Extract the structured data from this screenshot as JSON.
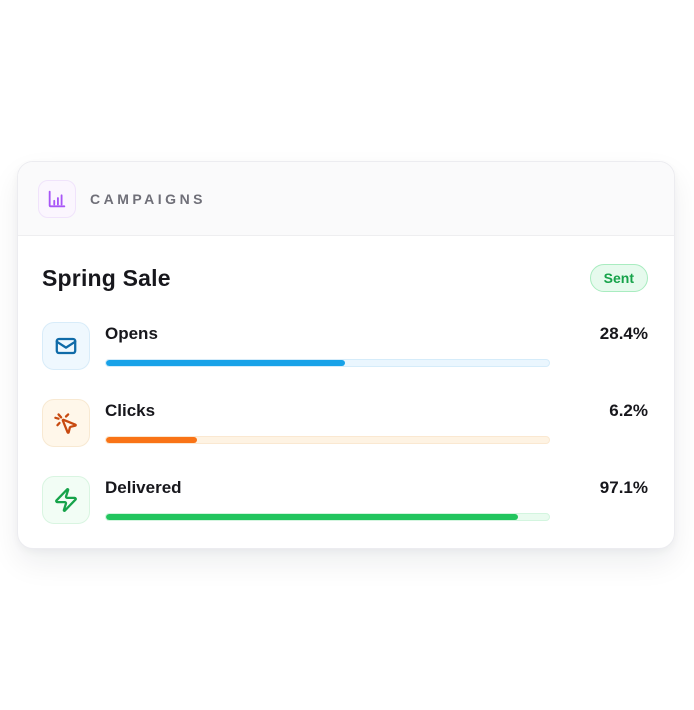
{
  "header": {
    "label": "CAMPAIGNS",
    "icon": "bar-chart-icon",
    "icon_color": "#a855f7",
    "icon_bg": "#fbf6fe",
    "icon_border": "#f0e3fb"
  },
  "campaign": {
    "title": "Spring Sale",
    "status": "Sent",
    "status_colors": {
      "bg": "#e6faed",
      "border": "#a9ecc0",
      "text": "#16a34a"
    },
    "metrics": [
      {
        "id": "opens",
        "label": "Opens",
        "value": "28.4%",
        "bar_fill_percent": 54,
        "icon": "mail-icon",
        "bar_color": "#18a2e8",
        "track_color": "#eaf6fe",
        "track_border": "#d5ecfa",
        "icon_color": "#0f6ba8",
        "icon_bg": "#eff8fe",
        "icon_border": "#d8ecf9"
      },
      {
        "id": "clicks",
        "label": "Clicks",
        "value": "6.2%",
        "bar_fill_percent": 20.5,
        "icon": "mouse-pointer-click-icon",
        "bar_color": "#f97316",
        "track_color": "#fef3e3",
        "track_border": "#fae8d1",
        "icon_color": "#c84a10",
        "icon_bg": "#fff7ea",
        "icon_border": "#f8e9d2"
      },
      {
        "id": "delivered",
        "label": "Delivered",
        "value": "97.1%",
        "bar_fill_percent": 93,
        "icon": "zap-icon",
        "bar_color": "#22c55e",
        "track_color": "#e9fbef",
        "track_border": "#d3f5df",
        "icon_color": "#16a34a",
        "icon_bg": "#f2fdf5",
        "icon_border": "#d9f5e1"
      }
    ]
  }
}
